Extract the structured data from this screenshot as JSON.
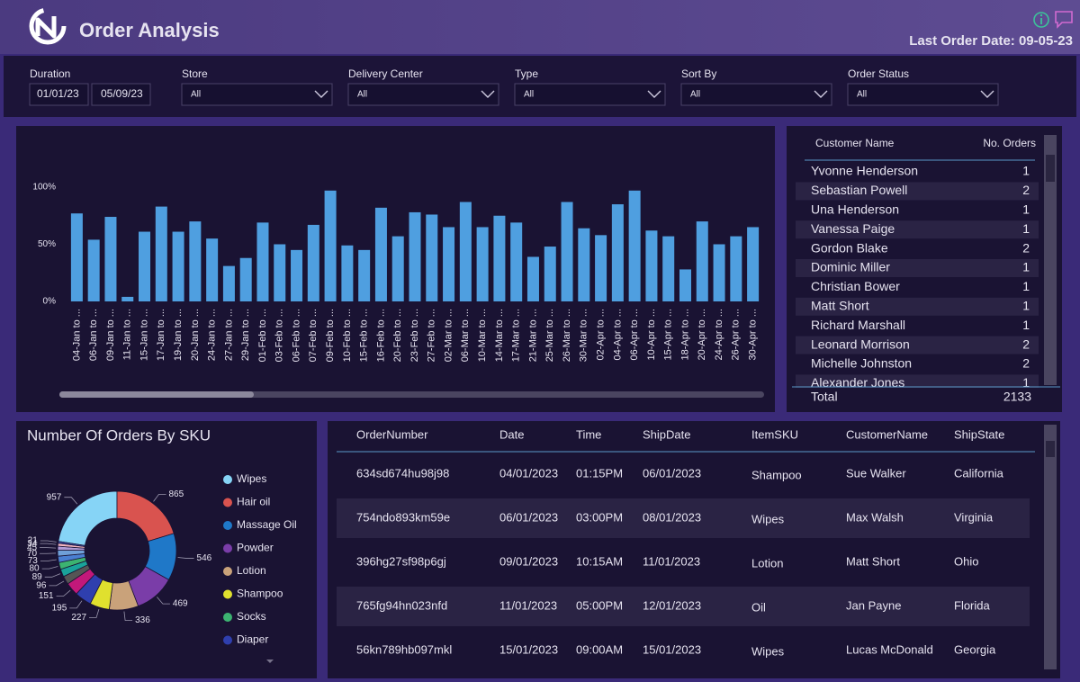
{
  "header": {
    "title": "Order Analysis",
    "last_order_date": "Last Order Date: 09-05-23"
  },
  "duration": {
    "label": "Duration",
    "from": "01/01/23",
    "to": "05/09/23"
  },
  "filters": [
    {
      "label": "Store",
      "value": "All"
    },
    {
      "label": "Delivery Center",
      "value": "All"
    },
    {
      "label": "Type",
      "value": "All"
    },
    {
      "label": "Sort By",
      "value": "All"
    },
    {
      "label": "Order Status",
      "value": "All"
    }
  ],
  "chart_data": [
    {
      "type": "bar",
      "categories": [
        "04-Jan to ...",
        "06-Jan to ...",
        "09-Jan to ...",
        "11-Jan to ...",
        "15-Jan to ...",
        "17-Jan to ...",
        "19-Jan to ...",
        "20-Jan to ...",
        "24-Jan to ...",
        "27-Jan to ...",
        "29-Jan to ...",
        "01-Feb to ...",
        "03-Feb to ...",
        "06-Feb to ...",
        "07-Feb to ...",
        "09-Feb to ...",
        "10-Feb to ...",
        "15-Feb to ...",
        "16-Feb to ...",
        "20-Feb to ...",
        "23-Feb to ...",
        "27-Feb to ...",
        "02-Mar to ...",
        "06-Mar to ...",
        "10-Mar to ...",
        "14-Mar to ...",
        "17-Mar to ...",
        "21-Mar to ...",
        "25-Mar to ...",
        "26-Mar to ...",
        "30-Mar to ...",
        "02-Apr to ...",
        "04-Apr to ...",
        "06-Apr to ...",
        "10-Apr to ...",
        "15-Apr to ...",
        "18-Apr to ...",
        "20-Apr to ...",
        "24-Apr to ...",
        "26-Apr to ...",
        "30-Apr to ..."
      ],
      "values": [
        77,
        54,
        74,
        4,
        61,
        83,
        61,
        70,
        55,
        31,
        38,
        69,
        50,
        45,
        67,
        97,
        49,
        45,
        82,
        57,
        78,
        76,
        65,
        87,
        65,
        75,
        69,
        39,
        48,
        87,
        64,
        58,
        85,
        97,
        62,
        57,
        28,
        70,
        50,
        57,
        65
      ],
      "color": "#4f9fe0",
      "ylim": [
        0,
        100
      ],
      "yticks": [
        {
          "value": 0,
          "label": "0%"
        },
        {
          "value": 50,
          "label": "50%"
        },
        {
          "value": 100,
          "label": "100%"
        }
      ],
      "grid": false
    },
    {
      "type": "pie",
      "title": "Number Of Orders By SKU",
      "values": [
        957,
        865,
        546,
        469,
        336,
        227,
        195,
        151,
        96,
        89,
        80,
        73,
        70,
        45,
        34,
        21
      ],
      "colors": [
        "#86d4f6",
        "#d9534f",
        "#1f78c8",
        "#7a3da8",
        "#c9a27a",
        "#e0e02e",
        "#2f3fae",
        "#c2187a",
        "#555555",
        "#1aa39a",
        "#3cb371",
        "#4a7fd1",
        "#6fa0d8",
        "#b09ad6",
        "#f4b6c2",
        "#3f51b5"
      ],
      "legend": [
        {
          "name": "Wipes",
          "color": "#86d4f6"
        },
        {
          "name": "Hair oil",
          "color": "#d9534f"
        },
        {
          "name": "Massage Oil",
          "color": "#1f78c8"
        },
        {
          "name": "Powder",
          "color": "#7a3da8"
        },
        {
          "name": "Lotion",
          "color": "#c9a27a"
        },
        {
          "name": "Shampoo",
          "color": "#e0e02e"
        },
        {
          "name": "Socks",
          "color": "#3cb371"
        },
        {
          "name": "Diaper",
          "color": "#2f3fae"
        }
      ],
      "donut": true
    }
  ],
  "customers": {
    "columns": [
      "Customer Name",
      "No. Orders"
    ],
    "rows": [
      [
        "Yvonne Henderson",
        "1"
      ],
      [
        "Sebastian Powell",
        "2"
      ],
      [
        "Una Henderson",
        "1"
      ],
      [
        "Vanessa Paige",
        "1"
      ],
      [
        "Gordon Blake",
        "2"
      ],
      [
        "Dominic Miller",
        "1"
      ],
      [
        "Christian Bower",
        "1"
      ],
      [
        "Matt Short",
        "1"
      ],
      [
        "Richard Marshall",
        "1"
      ],
      [
        "Leonard Morrison",
        "2"
      ],
      [
        "Michelle Johnston",
        "2"
      ],
      [
        "Alexander Jones",
        "1"
      ]
    ],
    "total_label": "Total",
    "total": "2133"
  },
  "orders": {
    "columns": [
      "OrderNumber",
      "Date",
      "Time",
      "ShipDate",
      "ItemSKU",
      "CustomerName",
      "ShipState"
    ],
    "rows": [
      [
        "634sd674hu98j98",
        "04/01/2023",
        "01:15PM",
        "06/01/2023",
        "Shampoo",
        "Sue Walker",
        "California"
      ],
      [
        "754ndo893km59e",
        "06/01/2023",
        "03:00PM",
        "08/01/2023",
        "Wipes",
        "Max Walsh",
        "Virginia"
      ],
      [
        "396hg27sf98p6gj",
        "09/01/2023",
        "10:15AM",
        "11/01/2023",
        "Lotion",
        "Matt Short",
        "Ohio"
      ],
      [
        "765fg94hn023nfd",
        "11/01/2023",
        "05:00PM",
        "12/01/2023",
        "Oil",
        "Jan Payne",
        "Florida"
      ],
      [
        "56kn789hb097mkl",
        "15/01/2023",
        "09:00AM",
        "15/01/2023",
        "Wipes",
        "Lucas McDonald",
        "Georgia"
      ]
    ]
  }
}
